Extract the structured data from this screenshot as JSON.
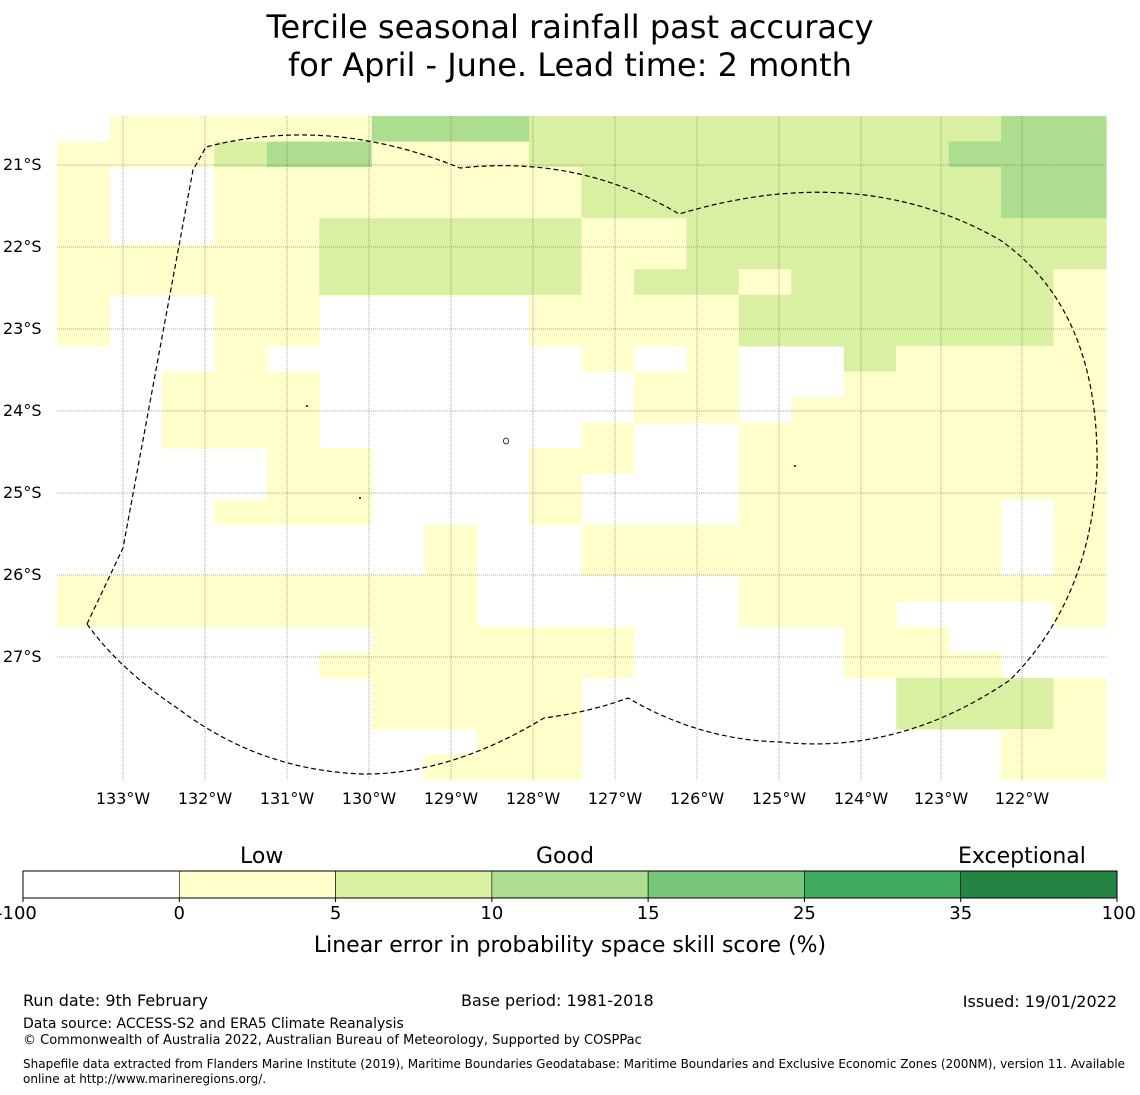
{
  "title": {
    "line1": "Tercile seasonal rainfall past accuracy",
    "line2": "for April - June. Lead time: 2 month"
  },
  "map": {
    "lat_labels": [
      "21°S",
      "22°S",
      "23°S",
      "24°S",
      "25°S",
      "26°S",
      "27°S"
    ],
    "lon_labels": [
      "133°W",
      "132°W",
      "131°W",
      "130°W",
      "129°W",
      "128°W",
      "127°W",
      "126°W",
      "125°W",
      "124°W",
      "123°W",
      "122°W"
    ],
    "grid_rows": [
      "01111133322222222233",
      "11123311122222222333",
      "10011111112222222233",
      "10011111112222222233",
      "10011222221122222222",
      "11111222221122222222",
      "11111222221221222221",
      "10011000011112222221",
      "10011000011112222221",
      "00010000001010021111",
      "00111000000110011111",
      "00111000000110111111",
      "00111000001001111111",
      "00001100011001111111",
      "00001100010001111111",
      "00011100010001111101",
      "00000001001111111101",
      "00000001001111111101",
      "11111111000001111111",
      "11111111000001110001",
      "00000011111000011000",
      "00000111111000011100",
      "00000011110000002221",
      "00000011110000002221",
      "00000000110000000011",
      "00000001110000000011"
    ],
    "region_colors": [
      "#ffffff",
      "#ffffcc",
      "#d9f0a3",
      "#addd8e"
    ]
  },
  "colorbar": {
    "categories": [
      "Low",
      "Good",
      "Exceptional"
    ],
    "ticks": [
      "-100",
      "0",
      "5",
      "10",
      "15",
      "25",
      "35",
      "100"
    ],
    "colors": [
      "#ffffff",
      "#ffffcc",
      "#d9f0a3",
      "#addd8e",
      "#78c679",
      "#41ab5d",
      "#238443"
    ],
    "axis_label": "Linear error in probability space skill score (%)"
  },
  "footer": {
    "run_date": "Run date: 9th February",
    "base_period": "Base period: 1981-2018",
    "issued": "Issued: 19/01/2022",
    "data_source": "Data source: ACCESS-S2 and ERA5 Climate Reanalysis",
    "copyright": "© Commonwealth of Australia 2022, Australian Bureau of Meteorology, Supported by COSPPac",
    "shapefile_line1": "Shapefile data extracted from Flanders Marine Institute (2019), Maritime Boundaries Geodatabase: Maritime Boundaries and Exclusive Economic Zones (200NM), version 11. Available",
    "shapefile_line2": "online at http://www.marineregions.org/."
  }
}
